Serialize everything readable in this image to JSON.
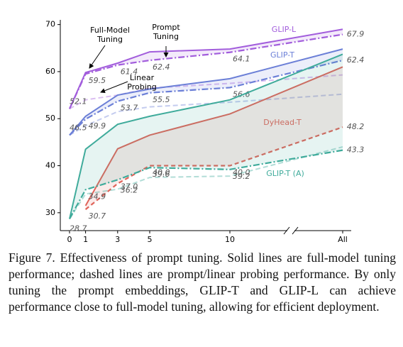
{
  "chart_data": {
    "type": "line",
    "categories": [
      "0",
      "1",
      "3",
      "5",
      "10",
      "All"
    ],
    "ylim": [
      26.2,
      71
    ],
    "yticks": [
      30,
      40,
      50,
      60,
      70
    ],
    "series": [
      {
        "name": "GLIP-L",
        "color": "#a25ddc",
        "full": [
          52.1,
          59.8,
          61.8,
          64.2,
          64.8,
          69.0
        ],
        "prompt": [
          52.1,
          59.5,
          61.4,
          62.4,
          64.1,
          67.9
        ],
        "prompt_labels": [
          "52.1",
          "59.5",
          "61.4",
          "62.4",
          "64.1",
          "67.9"
        ],
        "linear": [
          52.1,
          54.0,
          55.0,
          56.5,
          57.5,
          59.3
        ]
      },
      {
        "name": "GLIP-T",
        "color": "#6b7fd7",
        "full": [
          46.5,
          50.5,
          55.0,
          56.3,
          58.5,
          64.8
        ],
        "prompt": [
          46.5,
          49.9,
          53.7,
          55.5,
          56.6,
          62.4
        ],
        "prompt_labels": [
          "46.5",
          "49.9",
          "53.7",
          "55.5",
          "56.6",
          "62.4"
        ],
        "linear": [
          46.5,
          48.5,
          51.5,
          52.5,
          53.5,
          55.2
        ]
      },
      {
        "name": "DyHead-T",
        "color": "#e0645a",
        "full": [
          null,
          31.5,
          43.6,
          46.5,
          51.0,
          61.0
        ],
        "prompt": [
          null,
          30.7,
          36.2,
          40.0,
          40.0,
          48.2
        ],
        "prompt_labels": [
          null,
          "30.7",
          "36.2",
          "40.0",
          "40.0",
          "48.2"
        ],
        "linear": [
          null,
          null,
          null,
          null,
          null,
          null
        ]
      },
      {
        "name": "GLIP-T (A)",
        "color": "#3fab9b",
        "full": [
          28.7,
          43.5,
          48.8,
          50.5,
          54.0,
          63.7
        ],
        "prompt": [
          28.7,
          34.9,
          37.0,
          39.6,
          39.2,
          43.3
        ],
        "prompt_labels": [
          "28.7",
          "34.9",
          "37.0",
          "39.6",
          "39.2",
          "43.3"
        ],
        "linear": [
          28.7,
          34.0,
          35.0,
          37.5,
          37.8,
          44.0
        ]
      }
    ],
    "annotations": [
      [
        "Full-Model",
        "Tuning"
      ],
      [
        "Prompt",
        "Tuning"
      ],
      [
        "Linear",
        "Probing"
      ]
    ]
  },
  "caption": "Figure 7.  Effectiveness of prompt tuning.  Solid lines are full-model tuning performance; dashed lines are prompt/linear probing performance.  By only tuning the prompt embeddings, GLIP-T and GLIP-L can achieve performance close to full-model tuning, allowing for efficient deployment."
}
